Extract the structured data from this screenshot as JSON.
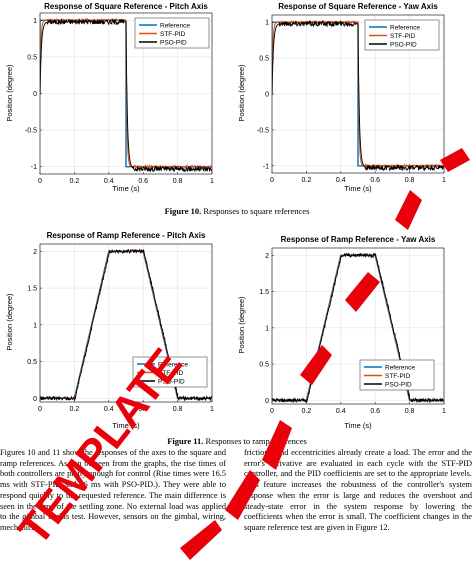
{
  "figures": [
    {
      "id": "pitch-square",
      "title": "Response of Square Reference - Pitch Axis",
      "xlabel": "Time (s)",
      "ylabel": "Position (degree)",
      "xlim": [
        0,
        1
      ],
      "ylim": [
        -1.1,
        1.1
      ]
    },
    {
      "id": "yaw-square",
      "title": "Response of Square Reference - Yaw Axis",
      "xlabel": "Time (s)",
      "ylabel": "Position (degree)",
      "xlim": [
        0,
        1
      ],
      "ylim": [
        -1.1,
        1.1
      ]
    },
    {
      "id": "pitch-ramp",
      "title": "Response of Ramp Reference - Pitch Axis",
      "xlabel": "Time (s)",
      "ylabel": "Position (degree)",
      "xlim": [
        0,
        1
      ],
      "ylim": [
        -0.05,
        2.1
      ]
    },
    {
      "id": "yaw-ramp",
      "title": "Response of Ramp Reference - Yaw Axis",
      "xlabel": "Time (s)",
      "ylabel": "Position (degree)",
      "xlim": [
        0,
        1
      ],
      "ylim": [
        -0.05,
        2.1
      ]
    }
  ],
  "legend": [
    "Reference",
    "STF-PID",
    "PSO-PID"
  ],
  "series_colors": {
    "Reference": "#0072BD",
    "STF-PID": "#D95319",
    "PSO-PID": "#000000"
  },
  "chart_data": [
    {
      "type": "line",
      "title": "Response of Square Reference - Pitch Axis",
      "xlabel": "Time (s)",
      "ylabel": "Position (degree)",
      "xlim": [
        0,
        1
      ],
      "ylim": [
        -1.1,
        1.1
      ],
      "xticks": [
        "0",
        "0.2",
        "0.4",
        "0.6",
        "0.8",
        "1"
      ],
      "yticks": [
        "-1",
        "-0.5",
        "0",
        "0.5",
        "1"
      ],
      "grid": true,
      "legend_position": "top-right",
      "series": [
        {
          "name": "Reference",
          "x": [
            0,
            0,
            0.5,
            0.5,
            1
          ],
          "y": [
            0,
            1,
            1,
            -1,
            -1
          ]
        },
        {
          "name": "STF-PID",
          "x": [
            0,
            0.01,
            0.03,
            0.1,
            0.5,
            0.51,
            0.53,
            0.6,
            1
          ],
          "y": [
            0,
            0.7,
            0.98,
            1,
            1,
            0,
            -0.98,
            -1,
            -1
          ]
        },
        {
          "name": "PSO-PID",
          "x": [
            0,
            0.01,
            0.03,
            0.1,
            0.5,
            0.51,
            0.53,
            0.6,
            1
          ],
          "y": [
            0,
            0.6,
            0.95,
            0.98,
            0.98,
            0,
            -0.95,
            -1.02,
            -1.03
          ]
        }
      ]
    },
    {
      "type": "line",
      "title": "Response of Square Reference - Yaw Axis",
      "xlabel": "Time (s)",
      "ylabel": "Position (degree)",
      "xlim": [
        0,
        1
      ],
      "ylim": [
        -1.1,
        1.1
      ],
      "xticks": [
        "0",
        "0.2",
        "0.4",
        "0.6",
        "0.8",
        "1"
      ],
      "yticks": [
        "-1",
        "-0.5",
        "0",
        "0.5",
        "1"
      ],
      "grid": true,
      "legend_position": "top-right",
      "series": [
        {
          "name": "Reference",
          "x": [
            0,
            0,
            0.5,
            0.5,
            1
          ],
          "y": [
            0,
            1,
            1,
            -1,
            -1
          ]
        },
        {
          "name": "STF-PID",
          "x": [
            0,
            0.01,
            0.03,
            0.1,
            0.5,
            0.51,
            0.53,
            0.6,
            1
          ],
          "y": [
            0,
            0.7,
            0.98,
            1,
            1,
            0,
            -0.98,
            -1,
            -1
          ]
        },
        {
          "name": "PSO-PID",
          "x": [
            0,
            0.01,
            0.03,
            0.1,
            0.5,
            0.51,
            0.53,
            0.6,
            1
          ],
          "y": [
            0,
            0.6,
            0.95,
            0.98,
            0.98,
            0,
            -0.95,
            -1.02,
            -1.03
          ]
        }
      ]
    },
    {
      "type": "line",
      "title": "Response of Ramp Reference - Pitch Axis",
      "xlabel": "Time (s)",
      "ylabel": "Position (degree)",
      "xlim": [
        0,
        1
      ],
      "ylim": [
        -0.05,
        2.1
      ],
      "xticks": [
        "0",
        "0.2",
        "0.4",
        "0.6",
        "0.8",
        "1"
      ],
      "yticks": [
        "0",
        "0.5",
        "1",
        "1.5",
        "2"
      ],
      "grid": true,
      "legend_position": "bottom-right",
      "series": [
        {
          "name": "Reference",
          "x": [
            0,
            0.2,
            0.4,
            0.6,
            0.8,
            1
          ],
          "y": [
            0,
            0,
            2,
            2,
            0,
            0
          ]
        },
        {
          "name": "STF-PID",
          "x": [
            0,
            0.2,
            0.4,
            0.6,
            0.8,
            1
          ],
          "y": [
            0,
            0,
            1.99,
            1.99,
            0,
            0
          ]
        },
        {
          "name": "PSO-PID",
          "x": [
            0,
            0.2,
            0.4,
            0.6,
            0.8,
            1
          ],
          "y": [
            0,
            0,
            1.97,
            1.97,
            0,
            0
          ]
        }
      ]
    },
    {
      "type": "line",
      "title": "Response of Ramp Reference - Yaw Axis",
      "xlabel": "Time (s)",
      "ylabel": "Position (degree)",
      "xlim": [
        0,
        1
      ],
      "ylim": [
        -0.05,
        2.1
      ],
      "xticks": [
        "0",
        "0.2",
        "0.4",
        "0.6",
        "0.8",
        "1"
      ],
      "yticks": [
        "0",
        "0.5",
        "1",
        "1.5",
        "2"
      ],
      "grid": true,
      "legend_position": "bottom-right",
      "series": [
        {
          "name": "Reference",
          "x": [
            0,
            0.2,
            0.4,
            0.6,
            0.8,
            1
          ],
          "y": [
            0,
            0,
            2,
            2,
            0,
            0
          ]
        },
        {
          "name": "STF-PID",
          "x": [
            0,
            0.2,
            0.4,
            0.6,
            0.8,
            1
          ],
          "y": [
            0,
            0,
            1.99,
            1.99,
            0,
            0
          ]
        },
        {
          "name": "PSO-PID",
          "x": [
            0,
            0.2,
            0.4,
            0.6,
            0.8,
            1
          ],
          "y": [
            0,
            0,
            1.97,
            1.97,
            0,
            0
          ]
        }
      ]
    }
  ],
  "captions": {
    "fig10_label": "Figure 10.",
    "fig10_text": " Responses to square references",
    "fig11_label": "Figure 11.",
    "fig11_text": " Responses to ramp references"
  },
  "body_text": {
    "left": "Figures 10 and 11 show the responses of the axes to the square and ramp references. As can be seen from the graphs, the rise times of both controllers are pretty enough for control (Rise times were 16.5 ms with STF-PID and 26 ms with PSO-PID.). They were able to respond quickly to the requested reference. The main difference is seen in the time of the settling zone. No external load was applied to the gimbal in this test. However, sensors on the gimbal, wiring, mechanical",
    "right": "frictions, and eccentricities already create a load. The error and the error's derivative are evaluated in each cycle with the STF-PID controller, and the PID coefficients are set to the appropriate levels. This feature increases the robustness of the controller's system response when the error is large and reduces the overshoot and steady-state error in the system response by lowering the coefficients when the error is small. The coefficient changes in the square reference test are given in Figure 12."
  }
}
